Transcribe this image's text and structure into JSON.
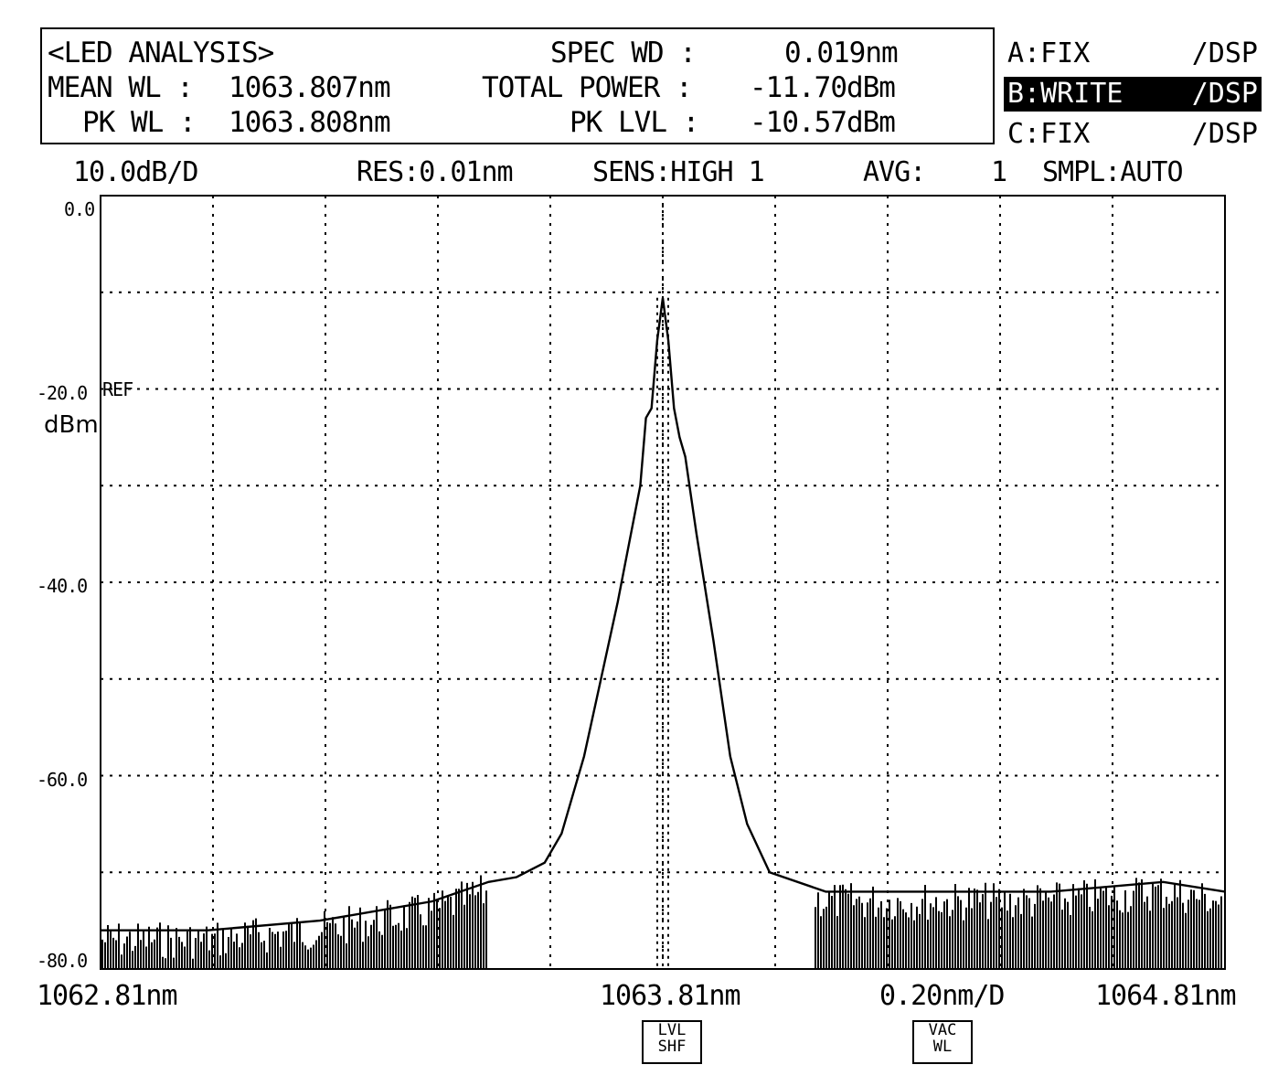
{
  "analysis": {
    "title": "<LED ANALYSIS>",
    "mean_wl_label": "MEAN WL :",
    "mean_wl_value": "1063.807nm",
    "pk_wl_label": "PK WL :",
    "pk_wl_value": "1063.808nm",
    "spec_wd_label": "SPEC WD :",
    "spec_wd_value": "0.019nm",
    "total_power_label": "TOTAL POWER :",
    "total_power_value": "-11.70dBm",
    "pk_lvl_label": "PK LVL :",
    "pk_lvl_value": "-10.57dBm"
  },
  "traces": [
    {
      "name": "A:FIX",
      "mode": "/DSP",
      "active": false
    },
    {
      "name": "B:WRITE",
      "mode": "/DSP",
      "active": true
    },
    {
      "name": "C:FIX",
      "mode": "/DSP",
      "active": false
    }
  ],
  "status": {
    "scale": "10.0dB/D",
    "res": "RES:0.01nm",
    "sens": "SENS:HIGH 1",
    "avg_label": "AVG:",
    "avg_value": "1",
    "smpl": "SMPL:AUTO"
  },
  "softkeys": {
    "lvl_shf": [
      "LVL",
      "SHF"
    ],
    "vac_wl": [
      "VAC",
      "WL"
    ]
  },
  "chart_data": {
    "type": "line",
    "ylabel": "dBm",
    "ref_label": "REF",
    "ylim": [
      -80,
      0
    ],
    "ytick_labels": [
      "0.0",
      "-20.0",
      "-40.0",
      "-60.0",
      "-80.0"
    ],
    "xlim": [
      1062.81,
      1064.81
    ],
    "xtick_labels": [
      "1062.81nm",
      "1063.81nm",
      "1064.81nm"
    ],
    "x_division": "0.20nm/D",
    "grid": true,
    "grid_divisions": {
      "x": 10,
      "y": 8
    },
    "series": [
      {
        "x": [
          1062.81,
          1063.0,
          1063.2,
          1063.3,
          1063.4,
          1063.45,
          1063.5,
          1063.55,
          1063.6,
          1063.63,
          1063.67,
          1063.7,
          1063.73,
          1063.75,
          1063.77,
          1063.78,
          1063.79,
          1063.8,
          1063.81,
          1063.82,
          1063.83,
          1063.84,
          1063.85,
          1063.87,
          1063.9,
          1063.93,
          1063.96,
          1064.0,
          1064.1,
          1064.3,
          1064.5,
          1064.7,
          1064.81
        ],
        "y": [
          -76,
          -76,
          -75,
          -74,
          -73,
          -72,
          -71,
          -70.5,
          -69,
          -66,
          -58,
          -50,
          -42,
          -36,
          -30,
          -23,
          -22,
          -15,
          -10.57,
          -15,
          -22,
          -25,
          -27,
          -35,
          -46,
          -58,
          -65,
          -70,
          -72,
          -72,
          -72,
          -71,
          -72
        ]
      }
    ]
  }
}
